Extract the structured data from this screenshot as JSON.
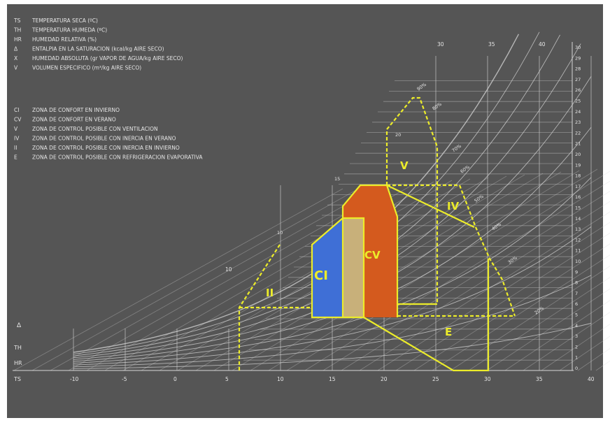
{
  "colors": {
    "background": "#555555",
    "grid": "#d6d6d6",
    "zone_line": "#ecec2a",
    "winter_comfort_fill": "#3f6fd6",
    "summer_comfort_fill": "#d45a1e",
    "overlap_fill": "#c8b07a",
    "legend_text": "#e6e6e6"
  },
  "legend": {
    "abbreviations": [
      {
        "code": "TS",
        "text": "TEMPERATURA SECA   (ºC)"
      },
      {
        "code": "TH",
        "text": "TEMPERATURA HUMEDA   (ºC)"
      },
      {
        "code": "HR",
        "text": "HUMEDAD RELATIVA (%)"
      },
      {
        "code": "Δ",
        "text": "ENTALPIA EN LA SATURACION (kcal/kg AIRE SECO)"
      },
      {
        "code": "X",
        "text": "HUMEDAD ABSOLUTA (gr VAPOR DE AGUA/kg AIRE SECO)"
      },
      {
        "code": "V",
        "text": "VOLUMEN ESPECIFICO (m³/kg AIRE SECO)"
      }
    ],
    "zones": [
      {
        "code": "CI",
        "text": "ZONA DE CONFORT EN INVIERNO"
      },
      {
        "code": "CV",
        "text": "ZONA DE CONFORT EN VERANO"
      },
      {
        "code": "V",
        "text": "ZONA DE CONTROL POSIBLE CON VENTILACION"
      },
      {
        "code": "IV",
        "text": "ZONA DE CONTROL POSIBLE CON INERCIA EN VERANO"
      },
      {
        "code": "II",
        "text": "ZONA DE CONTROL POSIBLE CON INERCIA EN INVIERNO"
      },
      {
        "code": "E",
        "text": "ZONA DE CONTROL POSIBLE CON REFRIGERACION EVAPORATIVA"
      }
    ]
  },
  "zone_labels": {
    "CI": "CI",
    "CV": "CV",
    "V": "V",
    "IV": "IV",
    "II": "II",
    "E": "E"
  },
  "axis": {
    "x_ticks": [
      "-10",
      "-5",
      "0",
      "5",
      "10",
      "15",
      "20",
      "25",
      "30",
      "35",
      "40"
    ],
    "top_ticks": [
      "10",
      "30",
      "35",
      "40"
    ],
    "right_ticks": [
      "30",
      "29",
      "28",
      "27",
      "26",
      "25",
      "24",
      "23",
      "22",
      "21",
      "20",
      "19",
      "18",
      "17",
      "16",
      "15",
      "14",
      "13",
      "12",
      "11",
      "10",
      "9",
      "8",
      "7",
      "6",
      "5",
      "4",
      "3",
      "2",
      "1",
      "0"
    ],
    "side_labels": {
      "enthalpy": "Δ",
      "th": "TH",
      "hr": "HR",
      "ts": "TS"
    }
  },
  "curve_labels": {
    "hr": [
      "90%",
      "80%",
      "70%",
      "60%",
      "50%",
      "40%",
      "30%",
      "20%"
    ],
    "twb": [
      "10",
      "15",
      "20"
    ]
  }
}
